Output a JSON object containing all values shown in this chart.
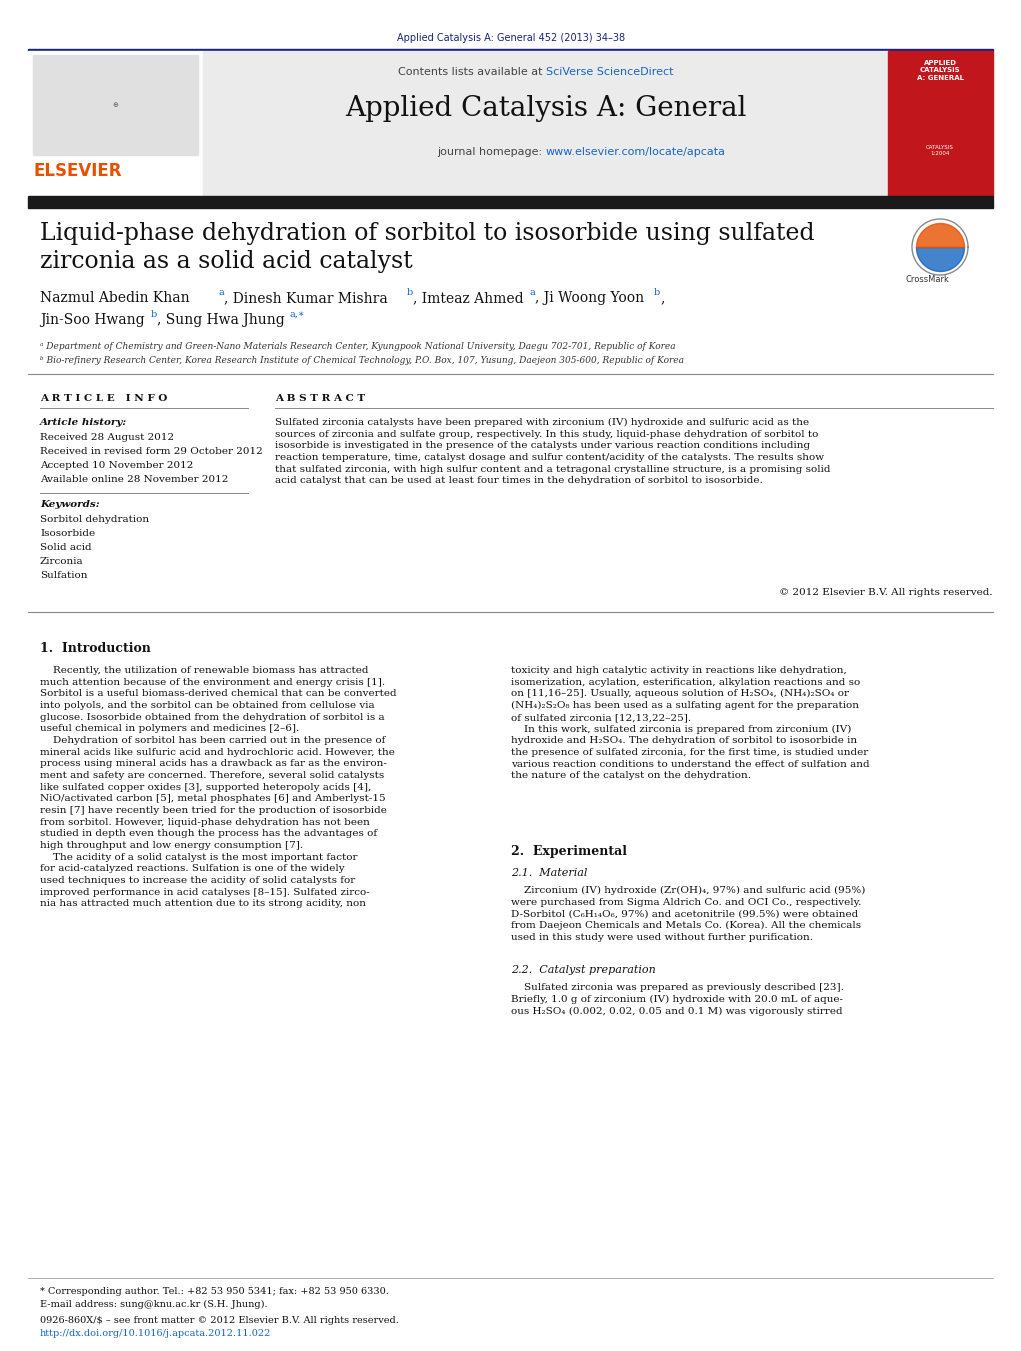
{
  "bg_color": "#ffffff",
  "top_citation": "Applied Catalysis A: General 452 (2013) 34–38",
  "top_citation_color": "#1a237e",
  "header_bg": "#e8e8e8",
  "journal_name": "Applied Catalysis A: General",
  "elsevier_color": "#e65100",
  "link_color": "#1565c0",
  "dark_bar_color": "#1a1a1a",
  "paper_title_line1": "Liquid-phase dehydration of sorbitol to isosorbide using sulfated",
  "paper_title_line2": "zirconia as a solid acid catalyst",
  "affil_a": "ᵃ Department of Chemistry and Green-Nano Materials Research Center, Kyungpook National University, Daegu 702-701, Republic of Korea",
  "affil_b": "ᵇ Bio-refinery Research Center, Korea Research Institute of Chemical Technology, P.O. Box, 107, Yusung, Daejeon 305-600, Republic of Korea",
  "article_info_title": "A R T I C L E   I N F O",
  "abstract_title": "A B S T R A C T",
  "article_history_title": "Article history:",
  "received": "Received 28 August 2012",
  "received_revised": "Received in revised form 29 October 2012",
  "accepted": "Accepted 10 November 2012",
  "available": "Available online 28 November 2012",
  "keywords_title": "Keywords:",
  "keywords": [
    "Sorbitol dehydration",
    "Isosorbide",
    "Solid acid",
    "Zirconia",
    "Sulfation"
  ],
  "abstract_text": "Sulfated zirconia catalysts have been prepared with zirconium (IV) hydroxide and sulfuric acid as the\nsources of zirconia and sulfate group, respectively. In this study, liquid-phase dehydration of sorbitol to\nisosorbide is investigated in the presence of the catalysts under various reaction conditions including\nreaction temperature, time, catalyst dosage and sulfur content/acidity of the catalysts. The results show\nthat sulfated zirconia, with high sulfur content and a tetragonal crystalline structure, is a promising solid\nacid catalyst that can be used at least four times in the dehydration of sorbitol to isosorbide.",
  "copyright": "© 2012 Elsevier B.V. All rights reserved.",
  "section1_title": "1.  Introduction",
  "col1_intro": "    Recently, the utilization of renewable biomass has attracted\nmuch attention because of the environment and energy crisis [1].\nSorbitol is a useful biomass-derived chemical that can be converted\ninto polyols, and the sorbitol can be obtained from cellulose via\nglucose. Isosorbide obtained from the dehydration of sorbitol is a\nuseful chemical in polymers and medicines [2–6].\n    Dehydration of sorbitol has been carried out in the presence of\nmineral acids like sulfuric acid and hydrochloric acid. However, the\nprocess using mineral acids has a drawback as far as the environ-\nment and safety are concerned. Therefore, several solid catalysts\nlike sulfated copper oxides [3], supported heteropoly acids [4],\nNiO/activated carbon [5], metal phosphates [6] and Amberlyst-15\nresin [7] have recently been tried for the production of isosorbide\nfrom sorbitol. However, liquid-phase dehydration has not been\nstudied in depth even though the process has the advantages of\nhigh throughput and low energy consumption [7].\n    The acidity of a solid catalyst is the most important factor\nfor acid-catalyzed reactions. Sulfation is one of the widely\nused techniques to increase the acidity of solid catalysts for\nimproved performance in acid catalyses [8–15]. Sulfated zirco-\nnia has attracted much attention due to its strong acidity, non",
  "col2_intro": "toxicity and high catalytic activity in reactions like dehydration,\nisomerization, acylation, esterification, alkylation reactions and so\non [11,16–25]. Usually, aqueous solution of H₂SO₄, (NH₄)₂SO₄ or\n(NH₄)₂S₂O₈ has been used as a sulfating agent for the preparation\nof sulfated zirconia [12,13,22–25].\n    In this work, sulfated zirconia is prepared from zirconium (IV)\nhydroxide and H₂SO₄. The dehydration of sorbitol to isosorbide in\nthe presence of sulfated zirconia, for the first time, is studied under\nvarious reaction conditions to understand the effect of sulfation and\nthe nature of the catalyst on the dehydration.",
  "section2_title": "2.  Experimental",
  "section21_title": "2.1.  Material",
  "mat_text": "    Zirconium (IV) hydroxide (Zr(OH)₄, 97%) and sulfuric acid (95%)\nwere purchased from Sigma Aldrich Co. and OCI Co., respectively.\nD-Sorbitol (C₆H₁₄O₆, 97%) and acetonitrile (99.5%) were obtained\nfrom Daejeon Chemicals and Metals Co. (Korea). All the chemicals\nused in this study were used without further purification.",
  "section22_title": "2.2.  Catalyst preparation",
  "cat_text": "    Sulfated zirconia was prepared as previously described [23].\nBriefly, 1.0 g of zirconium (IV) hydroxide with 20.0 mL of aque-\nous H₂SO₄ (0.002, 0.02, 0.05 and 0.1 M) was vigorously stirred",
  "footnote_star": "* Corresponding author. Tel.: +82 53 950 5341; fax: +82 53 950 6330.",
  "footnote_email": "E-mail address: sung@knu.ac.kr (S.H. Jhung).",
  "issn_line": "0926-860X/$ – see front matter © 2012 Elsevier B.V. All rights reserved.",
  "doi_line": "http://dx.doi.org/10.1016/j.apcata.2012.11.022"
}
